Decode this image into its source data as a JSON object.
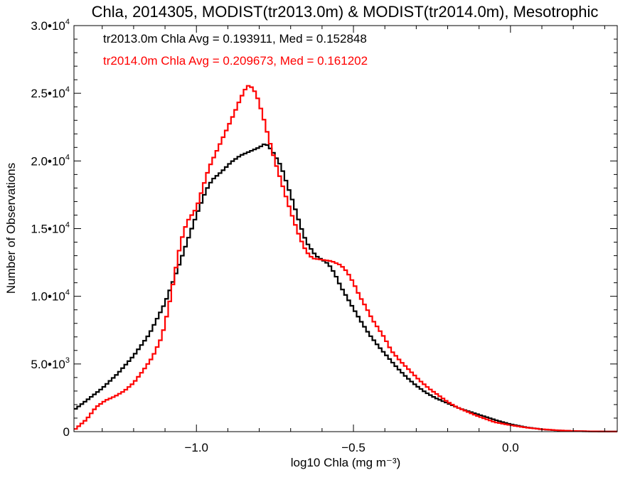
{
  "chart_data": {
    "type": "line",
    "title": "Chla, 2014305, MODIST(tr2013.0m) & MODIST(tr2014.0m), Mesotrophic",
    "xlabel": "log10 Chla (mg m⁻³)",
    "ylabel": "Number of Observations",
    "xlim": [
      -1.39,
      0.34
    ],
    "ylim": [
      0,
      30000
    ],
    "grid": false,
    "step": true,
    "x_ticks": [
      {
        "value": -1.0,
        "label": "−1.0"
      },
      {
        "value": -0.5,
        "label": "−0.5"
      },
      {
        "value": 0.0,
        "label": "0.0"
      }
    ],
    "y_ticks": [
      {
        "value": 0,
        "label": "0"
      },
      {
        "value": 5000,
        "label": "5.0•",
        "exp": "3"
      },
      {
        "value": 10000,
        "label": "1.0•",
        "exp": "4"
      },
      {
        "value": 15000,
        "label": "1.5•",
        "exp": "4"
      },
      {
        "value": 20000,
        "label": "2.0•",
        "exp": "4"
      },
      {
        "value": 25000,
        "label": "2.5•",
        "exp": "4"
      },
      {
        "value": 30000,
        "label": "3.0•",
        "exp": "4"
      }
    ],
    "annotations": [
      {
        "text": "tr2013.0m Chla Avg = 0.193911, Med = 0.152848",
        "color": "#000000"
      },
      {
        "text": "tr2014.0m Chla Avg = 0.209673, Med = 0.161202",
        "color": "#ff0000"
      }
    ],
    "series": [
      {
        "color": "#000000",
        "points": [
          [
            -1.39,
            1600
          ],
          [
            -1.35,
            2300
          ],
          [
            -1.3,
            3200
          ],
          [
            -1.25,
            4300
          ],
          [
            -1.2,
            5600
          ],
          [
            -1.15,
            7200
          ],
          [
            -1.1,
            9500
          ],
          [
            -1.06,
            12000
          ],
          [
            -1.03,
            14000
          ],
          [
            -1.0,
            16000
          ],
          [
            -0.97,
            17800
          ],
          [
            -0.95,
            18600
          ],
          [
            -0.92,
            19200
          ],
          [
            -0.89,
            19900
          ],
          [
            -0.86,
            20400
          ],
          [
            -0.83,
            20700
          ],
          [
            -0.8,
            21000
          ],
          [
            -0.78,
            21300
          ],
          [
            -0.76,
            20800
          ],
          [
            -0.73,
            19600
          ],
          [
            -0.71,
            18200
          ],
          [
            -0.69,
            16800
          ],
          [
            -0.67,
            15300
          ],
          [
            -0.65,
            14000
          ],
          [
            -0.62,
            13000
          ],
          [
            -0.6,
            12700
          ],
          [
            -0.58,
            12400
          ],
          [
            -0.56,
            11700
          ],
          [
            -0.54,
            10700
          ],
          [
            -0.51,
            9500
          ],
          [
            -0.48,
            8300
          ],
          [
            -0.45,
            7200
          ],
          [
            -0.42,
            6300
          ],
          [
            -0.39,
            5500
          ],
          [
            -0.36,
            4700
          ],
          [
            -0.33,
            4000
          ],
          [
            -0.3,
            3400
          ],
          [
            -0.27,
            2900
          ],
          [
            -0.24,
            2500
          ],
          [
            -0.2,
            2100
          ],
          [
            -0.16,
            1700
          ],
          [
            -0.12,
            1400
          ],
          [
            -0.08,
            1100
          ],
          [
            -0.04,
            800
          ],
          [
            0.0,
            550
          ],
          [
            0.05,
            320
          ],
          [
            0.1,
            170
          ],
          [
            0.15,
            90
          ],
          [
            0.2,
            45
          ],
          [
            0.25,
            20
          ],
          [
            0.3,
            10
          ],
          [
            0.34,
            5
          ]
        ]
      },
      {
        "color": "#ff0000",
        "points": [
          [
            -1.39,
            100
          ],
          [
            -1.35,
            900
          ],
          [
            -1.32,
            1800
          ],
          [
            -1.29,
            2300
          ],
          [
            -1.26,
            2600
          ],
          [
            -1.23,
            3000
          ],
          [
            -1.2,
            3600
          ],
          [
            -1.17,
            4500
          ],
          [
            -1.14,
            5500
          ],
          [
            -1.11,
            7000
          ],
          [
            -1.09,
            9000
          ],
          [
            -1.07,
            11500
          ],
          [
            -1.05,
            14000
          ],
          [
            -1.03,
            15500
          ],
          [
            -1.0,
            16500
          ],
          [
            -0.98,
            18000
          ],
          [
            -0.96,
            19500
          ],
          [
            -0.93,
            21000
          ],
          [
            -0.9,
            22500
          ],
          [
            -0.88,
            23500
          ],
          [
            -0.86,
            24600
          ],
          [
            -0.84,
            25500
          ],
          [
            -0.83,
            25600
          ],
          [
            -0.81,
            25000
          ],
          [
            -0.79,
            23500
          ],
          [
            -0.77,
            21700
          ],
          [
            -0.75,
            20000
          ],
          [
            -0.73,
            18500
          ],
          [
            -0.71,
            17000
          ],
          [
            -0.69,
            15600
          ],
          [
            -0.67,
            14300
          ],
          [
            -0.65,
            13300
          ],
          [
            -0.63,
            12800
          ],
          [
            -0.6,
            12700
          ],
          [
            -0.57,
            12600
          ],
          [
            -0.54,
            12300
          ],
          [
            -0.52,
            11800
          ],
          [
            -0.5,
            11000
          ],
          [
            -0.48,
            10000
          ],
          [
            -0.46,
            9200
          ],
          [
            -0.44,
            8300
          ],
          [
            -0.42,
            7600
          ],
          [
            -0.4,
            6900
          ],
          [
            -0.38,
            6000
          ],
          [
            -0.35,
            5200
          ],
          [
            -0.32,
            4500
          ],
          [
            -0.29,
            3800
          ],
          [
            -0.26,
            3200
          ],
          [
            -0.23,
            2700
          ],
          [
            -0.2,
            2200
          ],
          [
            -0.17,
            1800
          ],
          [
            -0.14,
            1500
          ],
          [
            -0.11,
            1200
          ],
          [
            -0.08,
            950
          ],
          [
            -0.05,
            700
          ],
          [
            0.0,
            480
          ],
          [
            0.05,
            300
          ],
          [
            0.1,
            180
          ],
          [
            0.15,
            100
          ],
          [
            0.2,
            50
          ],
          [
            0.25,
            25
          ],
          [
            0.3,
            12
          ],
          [
            0.34,
            6
          ]
        ]
      }
    ]
  }
}
